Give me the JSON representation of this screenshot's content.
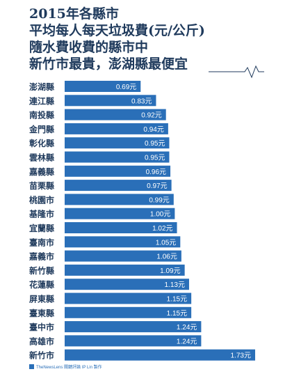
{
  "title_lines": [
    "2015年各縣市",
    "平均每人每天垃圾費(元/公斤)",
    "隨水費收費的縣市中",
    "新竹市最貴，澎湖縣最便宜"
  ],
  "footer": {
    "credit": "TheNewsLens 關鍵評論 IP Lin 製作"
  },
  "colors": {
    "bar": "#2a6fb8",
    "text": "#1f3a5c",
    "label_text": "#ffffff"
  },
  "chart_data": {
    "type": "bar",
    "orientation": "horizontal",
    "title": "2015年各縣市 平均每人每天垃圾費(元/公斤) 隨水費收費的縣市中 新竹市最貴，澎湖縣最便宜",
    "categories": [
      "澎湖縣",
      "連江縣",
      "南投縣",
      "金門縣",
      "彰化縣",
      "雲林縣",
      "嘉義縣",
      "苗栗縣",
      "桃園市",
      "基隆市",
      "宜蘭縣",
      "臺南市",
      "嘉義市",
      "新竹縣",
      "花蓮縣",
      "屏東縣",
      "臺東縣",
      "臺中市",
      "高雄市",
      "新竹市"
    ],
    "values": [
      0.69,
      0.83,
      0.92,
      0.94,
      0.95,
      0.95,
      0.96,
      0.97,
      0.99,
      1.0,
      1.02,
      1.05,
      1.06,
      1.09,
      1.13,
      1.15,
      1.15,
      1.24,
      1.24,
      1.73
    ],
    "value_labels": [
      "0.69元",
      "0.83元",
      "0.92元",
      "0.94元",
      "0.95元",
      "0.95元",
      "0.96元",
      "0.97元",
      "0.99元",
      "1.00元",
      "1.02元",
      "1.05元",
      "1.06元",
      "1.09元",
      "1.13元",
      "1.15元",
      "1.15元",
      "1.24元",
      "1.24元",
      "1.73元"
    ],
    "unit": "元",
    "xlim": [
      0,
      1.73
    ]
  }
}
